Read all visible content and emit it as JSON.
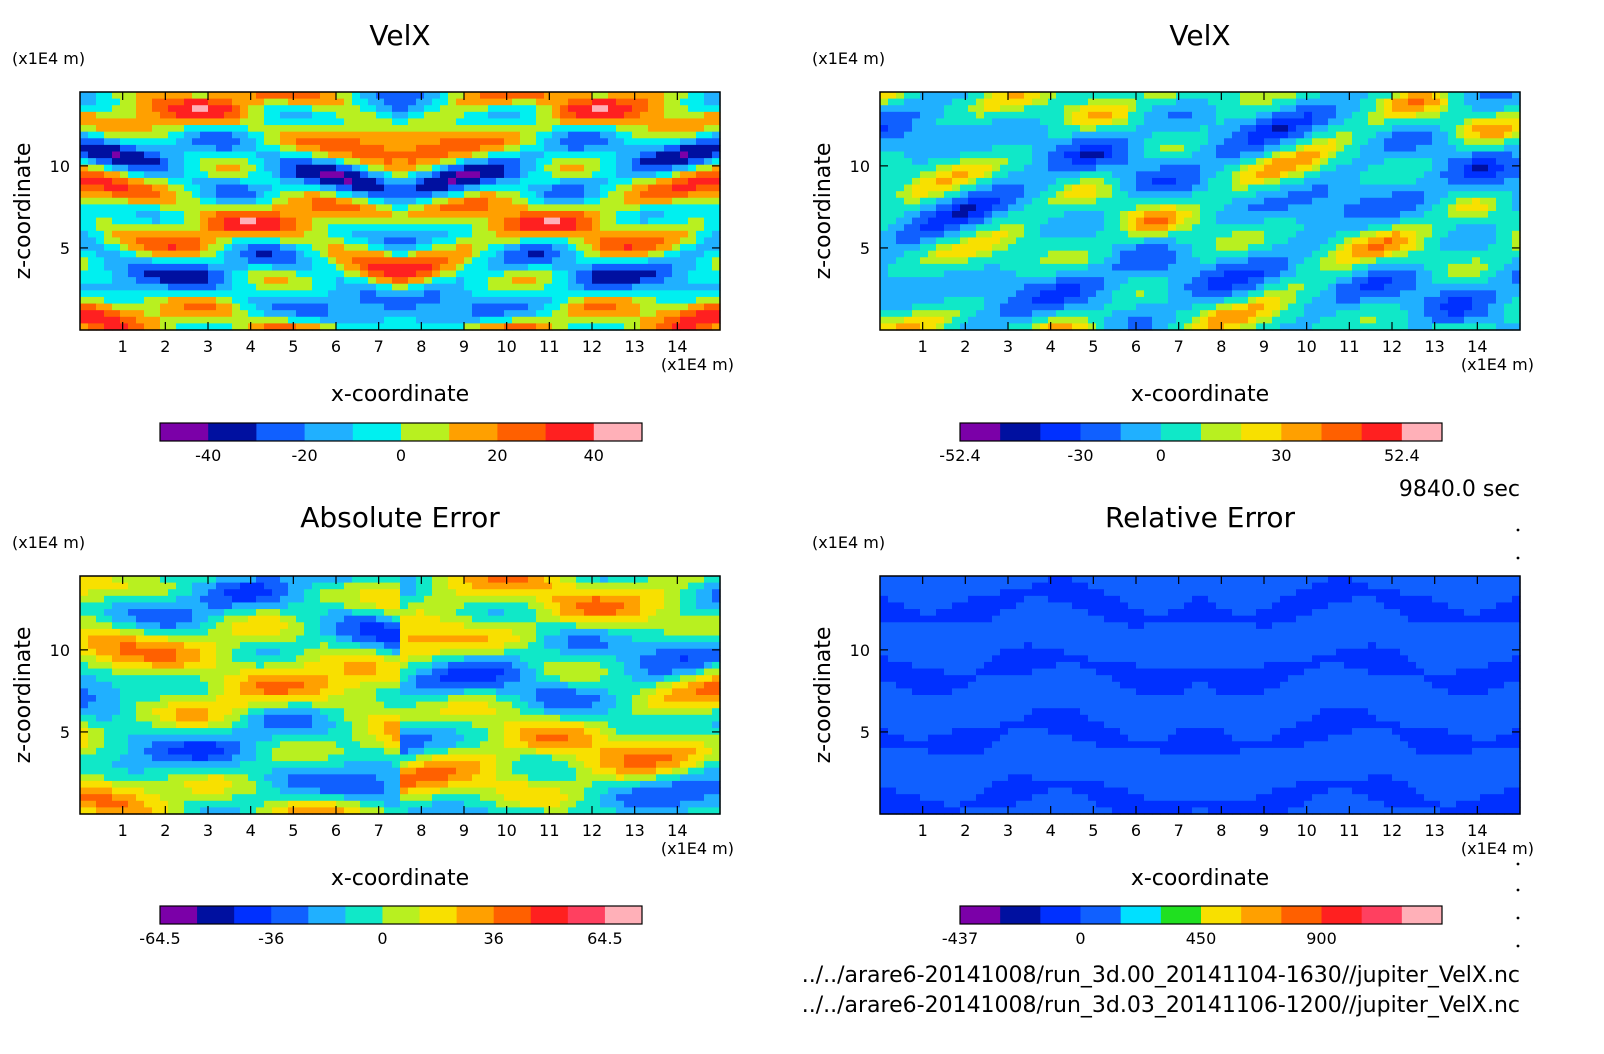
{
  "time_label": "9840.0 sec",
  "file_paths": [
    "../../arare6-20141008/run_3d.00_20141104-1630//jupiter_VelX.nc",
    "../../arare6-20141008/run_3d.03_20141106-1200//jupiter_VelX.nc"
  ],
  "colors": {
    "frame": "#000000",
    "purple": "#7b00a8",
    "navy": "#0010a0",
    "blue": "#0030ff",
    "midblue": "#1060ff",
    "skyblue": "#20b0ff",
    "cyan": "#00f0f0",
    "aqua": "#10e8c8",
    "green": "#20e020",
    "yellowgreen": "#b8f020",
    "yellow": "#f8e000",
    "orange": "#ffa000",
    "darkorange": "#ff6000",
    "red": "#ff2020",
    "pink": "#ffb0b8"
  },
  "chart_data": [
    {
      "type": "heatmap",
      "id": "velx-1",
      "title": "VelX",
      "xlabel": "x-coordinate",
      "ylabel": "z-coordinate",
      "x_unit": "(x1E4 m)",
      "y_unit": "(x1E4 m)",
      "xlim": [
        0,
        15
      ],
      "ylim": [
        0,
        14.5
      ],
      "xticks": [
        "1",
        "2",
        "3",
        "4",
        "5",
        "6",
        "7",
        "8",
        "9",
        "10",
        "11",
        "12",
        "13",
        "14"
      ],
      "yticks": [
        "5",
        "10"
      ],
      "colorbar": {
        "levels": [
          -50,
          -40,
          -30,
          -20,
          -10,
          0,
          10,
          20,
          30,
          40,
          50
        ],
        "tick_labels": [
          "-40",
          "-20",
          "0",
          "20",
          "40"
        ],
        "tick_values": [
          -40,
          -20,
          0,
          20,
          40
        ],
        "colors": [
          "#7b00a8",
          "#0010a0",
          "#1060ff",
          "#20b0ff",
          "#00f0f0",
          "#b8f020",
          "#ffa000",
          "#ff6000",
          "#ff2020",
          "#ffb0b8"
        ]
      },
      "pattern": "wave"
    },
    {
      "type": "heatmap",
      "id": "velx-2",
      "title": "VelX",
      "xlabel": "x-coordinate",
      "ylabel": "z-coordinate",
      "x_unit": "(x1E4 m)",
      "y_unit": "(x1E4 m)",
      "xlim": [
        0,
        15
      ],
      "ylim": [
        0,
        14.5
      ],
      "xticks": [
        "1",
        "2",
        "3",
        "4",
        "5",
        "6",
        "7",
        "8",
        "9",
        "10",
        "11",
        "12",
        "13",
        "14"
      ],
      "yticks": [
        "5",
        "10"
      ],
      "colorbar": {
        "levels": [
          -52.4,
          -45,
          -37.5,
          -30,
          -15,
          0,
          15,
          22.5,
          30,
          37.5,
          45,
          52.4
        ],
        "tick_labels": [
          "-52.4",
          "-30",
          "0",
          "30",
          "52.4"
        ],
        "tick_values": [
          -52.4,
          -30,
          0,
          30,
          52.4
        ],
        "colors": [
          "#7b00a8",
          "#0010a0",
          "#0030ff",
          "#1060ff",
          "#20b0ff",
          "#10e8c8",
          "#b8f020",
          "#f8e000",
          "#ffa000",
          "#ff6000",
          "#ff2020",
          "#ffb0b8"
        ]
      },
      "pattern": "wave2"
    },
    {
      "type": "heatmap",
      "id": "abs-error",
      "title": "Absolute Error",
      "xlabel": "x-coordinate",
      "ylabel": "z-coordinate",
      "x_unit": "(x1E4 m)",
      "y_unit": "(x1E4 m)",
      "xlim": [
        0,
        15
      ],
      "ylim": [
        0,
        14.5
      ],
      "xticks": [
        "1",
        "2",
        "3",
        "4",
        "5",
        "6",
        "7",
        "8",
        "9",
        "10",
        "11",
        "12",
        "13",
        "14"
      ],
      "yticks": [
        "5",
        "10"
      ],
      "colorbar": {
        "levels": [
          -64.5,
          -54,
          -45,
          -36,
          -24,
          -12,
          0,
          12,
          24,
          36,
          45,
          54,
          64.5
        ],
        "tick_labels": [
          "-64.5",
          "-36",
          "0",
          "36",
          "64.5"
        ],
        "tick_values": [
          -64.5,
          -36,
          0,
          36,
          64.5
        ],
        "colors": [
          "#7b00a8",
          "#0010a0",
          "#0030ff",
          "#1060ff",
          "#20b0ff",
          "#10e8c8",
          "#b8f020",
          "#f8e000",
          "#ffa000",
          "#ff6000",
          "#ff2020",
          "#ff4060",
          "#ffb0b8"
        ]
      },
      "pattern": "error"
    },
    {
      "type": "heatmap",
      "id": "rel-error",
      "title": "Relative Error",
      "xlabel": "x-coordinate",
      "ylabel": "z-coordinate",
      "x_unit": "(x1E4 m)",
      "y_unit": "(x1E4 m)",
      "xlim": [
        0,
        15
      ],
      "ylim": [
        0,
        14.5
      ],
      "xticks": [
        "1",
        "2",
        "3",
        "4",
        "5",
        "6",
        "7",
        "8",
        "9",
        "10",
        "11",
        "12",
        "13",
        "14"
      ],
      "yticks": [
        "5",
        "10"
      ],
      "colorbar": {
        "levels": [
          -437,
          -300,
          -150,
          0,
          150,
          300,
          450,
          600,
          750,
          900,
          1050,
          1200,
          1350
        ],
        "tick_labels": [
          "-437",
          "0",
          "450",
          "900"
        ],
        "tick_values": [
          -437,
          0,
          450,
          900
        ],
        "colors": [
          "#7b00a8",
          "#0010a0",
          "#0030ff",
          "#1060ff",
          "#00e0ff",
          "#20e020",
          "#f8e000",
          "#ffa000",
          "#ff6000",
          "#ff2020",
          "#ff4060",
          "#ffb0b8"
        ]
      },
      "pattern": "relative"
    }
  ]
}
